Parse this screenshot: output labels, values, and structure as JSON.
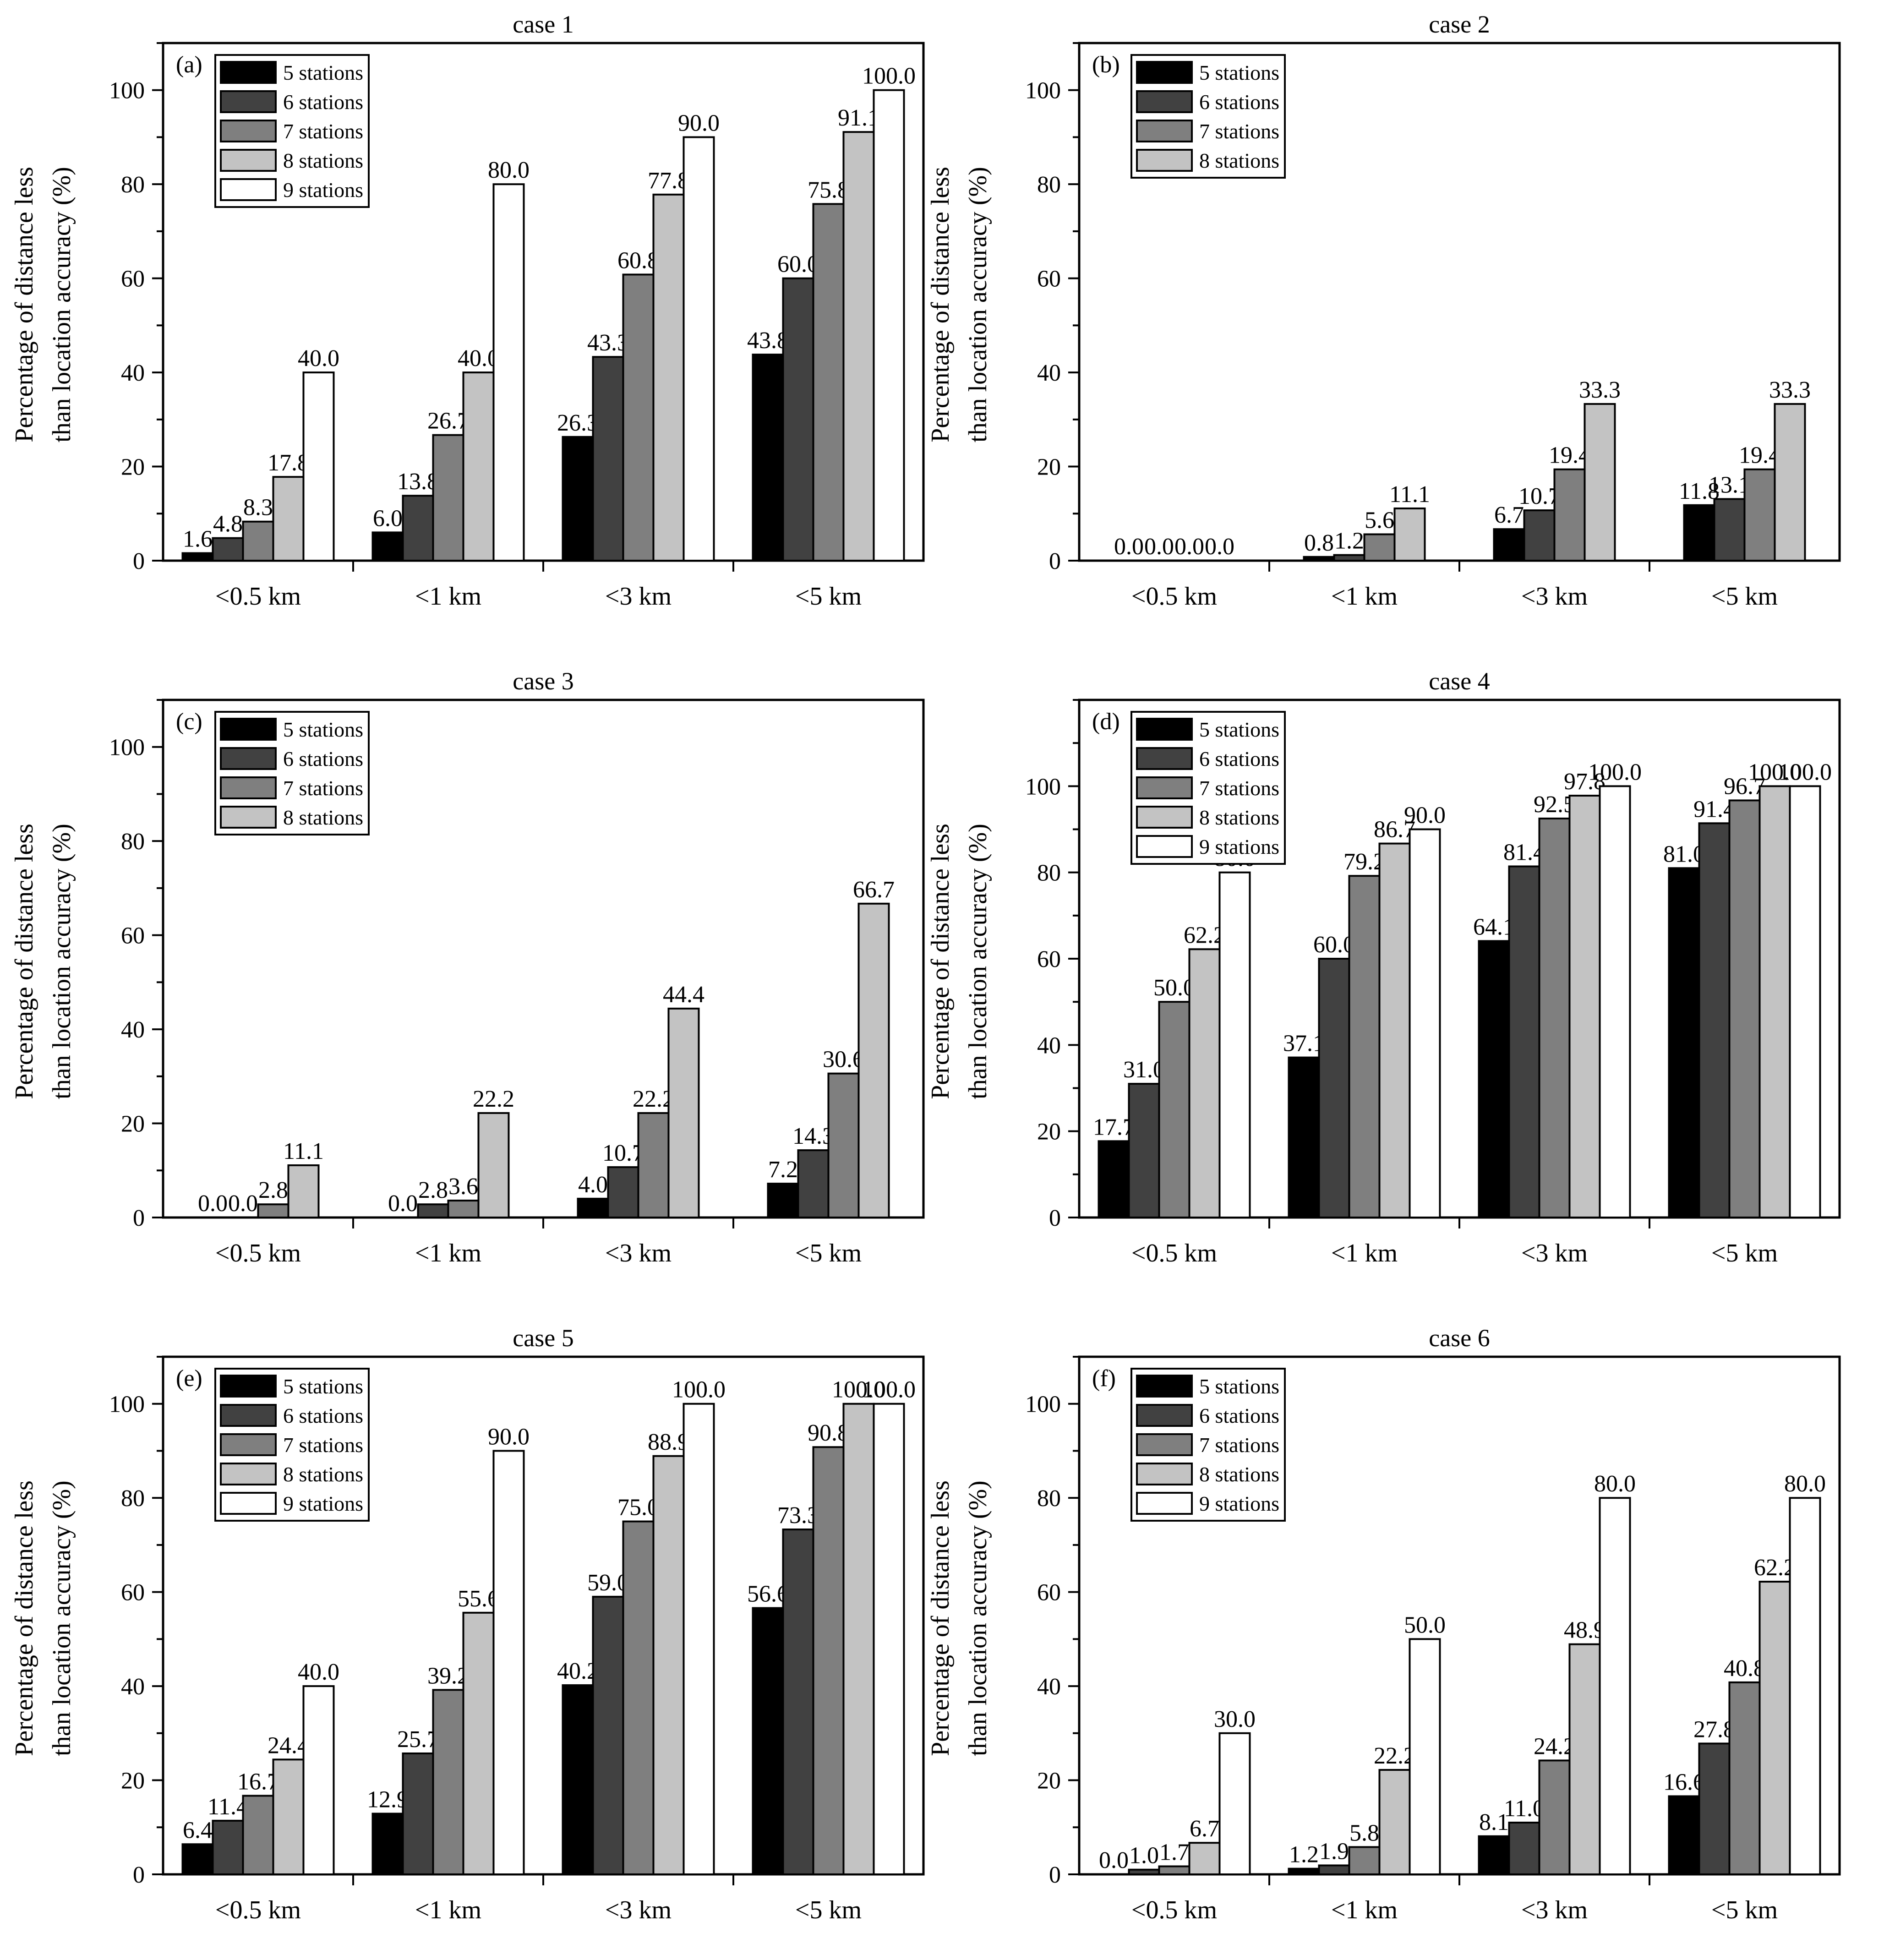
{
  "figure": {
    "shared_ylabel_line1": "Percentage of distance less",
    "shared_ylabel_line2": "than location accuracy (%)"
  },
  "colors": {
    "5 stations": "#000000",
    "6 stations": "#414141",
    "7 stations": "#7f7f7f",
    "8 stations": "#c3c3c3",
    "9 stations": "#ffffff"
  },
  "chart_data": [
    {
      "type": "bar",
      "panel": "(a)",
      "title": "case 1",
      "ylabel": "Percentage of distance less than location accuracy (%)",
      "ylim": [
        0,
        110
      ],
      "yticks": [
        0,
        20,
        40,
        60,
        80,
        100
      ],
      "categories": [
        "<0.5 km",
        "<1 km",
        "<3 km",
        "<5 km"
      ],
      "series": [
        {
          "name": "5 stations",
          "values": [
            1.6,
            6.0,
            26.3,
            43.8
          ],
          "labels": [
            "1.6",
            "6.0",
            "26.3",
            "43.8"
          ]
        },
        {
          "name": "6 stations",
          "values": [
            4.8,
            13.8,
            43.3,
            60.0
          ],
          "labels": [
            "4.8",
            "13.8",
            "43.3",
            "60.0"
          ]
        },
        {
          "name": "7 stations",
          "values": [
            8.3,
            26.7,
            60.8,
            75.8
          ],
          "labels": [
            "8.3",
            "26.7",
            "60.8",
            "75.8"
          ]
        },
        {
          "name": "8 stations",
          "values": [
            17.8,
            40.0,
            77.8,
            91.1
          ],
          "labels": [
            "17.8",
            "40.0",
            "77.8",
            "91.1"
          ]
        },
        {
          "name": "9 stations",
          "values": [
            40.0,
            80.0,
            90.0,
            100.0
          ],
          "labels": [
            "40.0",
            "80.0",
            "90.0",
            "100.0"
          ]
        }
      ]
    },
    {
      "type": "bar",
      "panel": "(b)",
      "title": "case 2",
      "ylabel": "Percentage of distance less than location accuracy (%)",
      "ylim": [
        0,
        110
      ],
      "yticks": [
        0,
        20,
        40,
        60,
        80,
        100
      ],
      "categories": [
        "<0.5 km",
        "<1 km",
        "<3 km",
        "<5 km"
      ],
      "series": [
        {
          "name": "5 stations",
          "values": [
            0.0,
            0.8,
            6.7,
            11.8
          ],
          "labels": [
            "0.0",
            "0.8",
            "6.7",
            "11.8"
          ]
        },
        {
          "name": "6 stations",
          "values": [
            0.0,
            1.2,
            10.7,
            13.1
          ],
          "labels": [
            "0.0",
            "1.2",
            "10.7",
            "13.1"
          ]
        },
        {
          "name": "7 stations",
          "values": [
            0.0,
            5.6,
            19.4,
            19.4
          ],
          "labels": [
            "0.0",
            "5.6",
            "19.4",
            "19.4"
          ]
        },
        {
          "name": "8 stations",
          "values": [
            0.0,
            11.1,
            33.3,
            33.3
          ],
          "labels": [
            "0.0",
            "11.1",
            "33.3",
            "33.3"
          ]
        }
      ]
    },
    {
      "type": "bar",
      "panel": "(c)",
      "title": "case 3",
      "ylabel": "Percentage of distance less than location accuracy (%)",
      "ylim": [
        0,
        110
      ],
      "yticks": [
        0,
        20,
        40,
        60,
        80,
        100
      ],
      "categories": [
        "<0.5 km",
        "<1 km",
        "<3 km",
        "<5 km"
      ],
      "series": [
        {
          "name": "5 stations",
          "values": [
            0.0,
            0.0,
            4.0,
            7.2
          ],
          "labels": [
            "0.0",
            "0.0",
            "4.0",
            "7.2"
          ]
        },
        {
          "name": "6 stations",
          "values": [
            0.0,
            2.8,
            10.7,
            14.3
          ],
          "labels": [
            "0.0",
            "2.8",
            "10.7",
            "14.3"
          ]
        },
        {
          "name": "7 stations",
          "values": [
            2.8,
            3.6,
            22.2,
            30.6
          ],
          "labels": [
            "2.8",
            "3.6",
            "22.2",
            "30.6"
          ]
        },
        {
          "name": "8 stations",
          "values": [
            11.1,
            22.2,
            44.4,
            66.7
          ],
          "labels": [
            "11.1",
            "22.2",
            "44.4",
            "66.7"
          ]
        }
      ]
    },
    {
      "type": "bar",
      "panel": "(d)",
      "title": "case 4",
      "ylabel": "Percentage of distance less than location accuracy (%)",
      "ylim": [
        0,
        120
      ],
      "yticks": [
        0,
        20,
        40,
        60,
        80,
        100
      ],
      "categories": [
        "<0.5 km",
        "<1 km",
        "<3 km",
        "<5 km"
      ],
      "series": [
        {
          "name": "5 stations",
          "values": [
            17.7,
            37.1,
            64.1,
            81.0
          ],
          "labels": [
            "17.7",
            "37.1",
            "64.1",
            "81.0"
          ]
        },
        {
          "name": "6 stations",
          "values": [
            31.0,
            60.0,
            81.4,
            91.4
          ],
          "labels": [
            "31.0",
            "60.0",
            "81.4",
            "91.4"
          ]
        },
        {
          "name": "7 stations",
          "values": [
            50.0,
            79.2,
            92.5,
            96.7
          ],
          "labels": [
            "50.0",
            "79.2",
            "92.5",
            "96.7"
          ]
        },
        {
          "name": "8 stations",
          "values": [
            62.2,
            86.7,
            97.8,
            100.0
          ],
          "labels": [
            "62.2",
            "86.7",
            "97.8",
            "100.0"
          ]
        },
        {
          "name": "9 stations",
          "values": [
            80.0,
            90.0,
            100.0,
            100.0
          ],
          "labels": [
            "80.0",
            "90.0",
            "100.0",
            "100.0"
          ]
        }
      ]
    },
    {
      "type": "bar",
      "panel": "(e)",
      "title": "case 5",
      "ylabel": "Percentage of distance less than location accuracy (%)",
      "ylim": [
        0,
        110
      ],
      "yticks": [
        0,
        20,
        40,
        60,
        80,
        100
      ],
      "categories": [
        "<0.5 km",
        "<1 km",
        "<3 km",
        "<5 km"
      ],
      "series": [
        {
          "name": "5 stations",
          "values": [
            6.4,
            12.9,
            40.2,
            56.6
          ],
          "labels": [
            "6.4",
            "12.9",
            "40.2",
            "56.6"
          ]
        },
        {
          "name": "6 stations",
          "values": [
            11.4,
            25.7,
            59.0,
            73.3
          ],
          "labels": [
            "11.4",
            "25.7",
            "59.0",
            "73.3"
          ]
        },
        {
          "name": "7 stations",
          "values": [
            16.7,
            39.2,
            75.0,
            90.8
          ],
          "labels": [
            "16.7",
            "39.2",
            "75.0",
            "90.8"
          ]
        },
        {
          "name": "8 stations",
          "values": [
            24.4,
            55.6,
            88.9,
            100.0
          ],
          "labels": [
            "24.4",
            "55.6",
            "88.9",
            "100.0"
          ]
        },
        {
          "name": "9 stations",
          "values": [
            40.0,
            90.0,
            100.0,
            100.0
          ],
          "labels": [
            "40.0",
            "90.0",
            "100.0",
            "100.0"
          ]
        }
      ]
    },
    {
      "type": "bar",
      "panel": "(f)",
      "title": "case 6",
      "ylabel": "Percentage of distance less than location accuracy (%)",
      "ylim": [
        0,
        110
      ],
      "yticks": [
        0,
        20,
        40,
        60,
        80,
        100
      ],
      "categories": [
        "<0.5 km",
        "<1 km",
        "<3 km",
        "<5 km"
      ],
      "series": [
        {
          "name": "5 stations",
          "values": [
            0.0,
            1.2,
            8.1,
            16.6
          ],
          "labels": [
            "0.0",
            "1.2",
            "8.1",
            "16.6"
          ]
        },
        {
          "name": "6 stations",
          "values": [
            1.0,
            1.9,
            11.0,
            27.8
          ],
          "labels": [
            "1.0",
            "1.9",
            "11.0",
            "27.8"
          ]
        },
        {
          "name": "7 stations",
          "values": [
            1.7,
            5.8,
            24.2,
            40.8
          ],
          "labels": [
            "1.7",
            "5.8",
            "24.2",
            "40.8"
          ]
        },
        {
          "name": "8 stations",
          "values": [
            6.7,
            22.2,
            48.9,
            62.2
          ],
          "labels": [
            "6.7",
            "22.2",
            "48.9",
            "62.2"
          ]
        },
        {
          "name": "9 stations",
          "values": [
            30.0,
            50.0,
            80.0,
            80.0
          ],
          "labels": [
            "30.0",
            "50.0",
            "80.0",
            "80.0"
          ]
        }
      ]
    }
  ]
}
